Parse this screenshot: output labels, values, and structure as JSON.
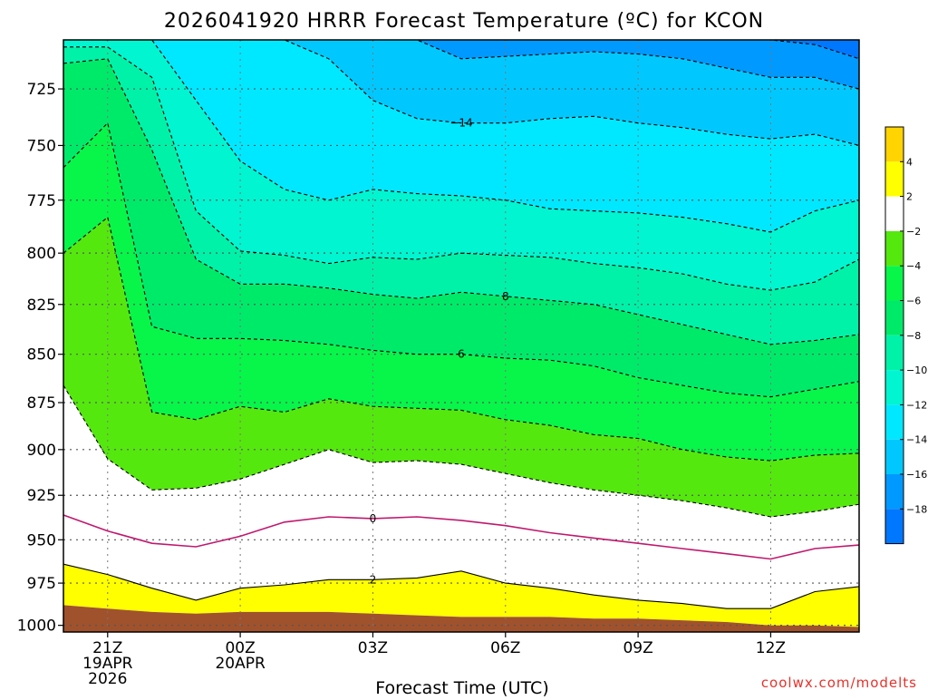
{
  "chart_data": {
    "type": "contour",
    "title": "2026041920 HRRR Forecast Temperature (ºC) for KCON",
    "xlabel": "Forecast Time (UTC)",
    "ylabel": "",
    "credit": "coolwx.com/modelts",
    "x_ticks": [
      {
        "hour": 1,
        "lines": [
          "21Z",
          "19APR",
          "2026"
        ]
      },
      {
        "hour": 4,
        "lines": [
          "00Z",
          "20APR"
        ]
      },
      {
        "hour": 7,
        "lines": [
          "03Z"
        ]
      },
      {
        "hour": 10,
        "lines": [
          "06Z"
        ]
      },
      {
        "hour": 13,
        "lines": [
          "09Z"
        ]
      },
      {
        "hour": 16,
        "lines": [
          "12Z"
        ]
      }
    ],
    "xlim": [
      0,
      18
    ],
    "y_ticks": [
      725,
      750,
      775,
      800,
      825,
      850,
      875,
      900,
      925,
      950,
      975,
      1000
    ],
    "ylim": [
      704,
      1004
    ],
    "y_scale": "log-pressure",
    "grid": true,
    "fill_colors": {
      "t_gt4": "#ffd400",
      "t_2_4": "#ffff00",
      "t_m2_2": "#ffffff",
      "t_m4_m2": "#55e80e",
      "t_m6_m4": "#08f54a",
      "t_m8_m6": "#00ea6a",
      "t_m10_m8": "#00f2a8",
      "t_m12_m10": "#00f5d0",
      "t_m14_m12": "#00e8ff",
      "t_m16_m14": "#00c8ff",
      "t_m18_m16": "#0099ff",
      "t_lt_m18": "#0077ff",
      "ground": "#a0522d"
    },
    "hours": [
      0,
      1,
      2,
      3,
      4,
      5,
      6,
      7,
      8,
      9,
      10,
      11,
      12,
      13,
      14,
      15,
      16,
      17,
      18
    ],
    "isotherms": [
      {
        "level": 2,
        "color": "#000000",
        "dashed": false,
        "label": "2",
        "label_hour": 7,
        "pressure": [
          964,
          970,
          978,
          985,
          978,
          976,
          973,
          973,
          972,
          968,
          975,
          978,
          982,
          985,
          987,
          990,
          990,
          980,
          977
        ]
      },
      {
        "level": 0,
        "color": "#c0186e",
        "dashed": false,
        "label": "0",
        "label_hour": 7,
        "pressure": [
          936,
          945,
          952,
          954,
          948,
          940,
          937,
          938,
          937,
          939,
          942,
          946,
          949,
          952,
          955,
          958,
          961,
          955,
          953
        ]
      },
      {
        "level": -2,
        "color": "#000000",
        "dashed": true,
        "label": "",
        "label_hour": 0,
        "pressure": [
          866,
          905,
          922,
          921,
          916,
          908,
          900,
          907,
          906,
          908,
          913,
          918,
          922,
          925,
          928,
          932,
          937,
          934,
          930
        ]
      },
      {
        "level": -4,
        "color": "#000000",
        "dashed": true,
        "label": "",
        "label_hour": 0,
        "pressure": [
          800,
          783,
          880,
          884,
          877,
          880,
          873,
          877,
          878,
          879,
          884,
          887,
          892,
          894,
          900,
          904,
          906,
          903,
          902
        ]
      },
      {
        "level": -6,
        "color": "#000000",
        "dashed": true,
        "label": "6",
        "label_hour": 9,
        "pressure": [
          760,
          740,
          836,
          842,
          842,
          843,
          845,
          848,
          850,
          850,
          852,
          853,
          856,
          862,
          866,
          870,
          872,
          868,
          864
        ]
      },
      {
        "level": -8,
        "color": "#000000",
        "dashed": true,
        "label": "8",
        "label_hour": 10,
        "pressure": [
          714,
          712,
          752,
          803,
          815,
          815,
          817,
          820,
          822,
          819,
          821,
          823,
          825,
          830,
          835,
          840,
          845,
          843,
          840
        ]
      },
      {
        "level": -10,
        "color": "#000000",
        "dashed": true,
        "label": "",
        "label_hour": 0,
        "pressure": [
          707,
          707,
          720,
          780,
          799,
          801,
          805,
          802,
          803,
          800,
          801,
          802,
          805,
          807,
          810,
          815,
          818,
          814,
          803
        ]
      },
      {
        "level": -12,
        "color": "#000000",
        "dashed": true,
        "label": "",
        "label_hour": 0,
        "pressure": [
          704,
          704,
          704,
          730,
          757,
          770,
          775,
          770,
          772,
          773,
          775,
          779,
          780,
          781,
          783,
          786,
          790,
          780,
          775
        ]
      },
      {
        "level": -14,
        "color": "#000000",
        "dashed": true,
        "label": "−14",
        "label_hour": 9,
        "pressure": [
          704,
          704,
          704,
          704,
          704,
          704,
          712,
          730,
          738,
          740,
          740,
          738,
          737,
          740,
          742,
          745,
          747,
          745,
          750
        ]
      },
      {
        "level": -16,
        "color": "#000000",
        "dashed": true,
        "label": "",
        "label_hour": 0,
        "pressure": [
          704,
          704,
          704,
          704,
          704,
          704,
          704,
          704,
          704,
          712,
          711,
          710,
          709,
          710,
          712,
          716,
          720,
          720,
          725
        ]
      },
      {
        "level": -18,
        "color": "#000000",
        "dashed": true,
        "label": "",
        "label_hour": 0,
        "pressure": [
          704,
          704,
          704,
          704,
          704,
          704,
          704,
          704,
          704,
          704,
          704,
          704,
          704,
          704,
          704,
          704,
          704,
          706,
          712
        ]
      }
    ],
    "surface_pressure": [
      988,
      990,
      992,
      993,
      992,
      992,
      992,
      993,
      994,
      995,
      995,
      995,
      996,
      996,
      997,
      998,
      1000,
      1000,
      1001
    ],
    "colorbar": {
      "labels": [
        "4",
        "2",
        "−2",
        "−4",
        "−6",
        "−8",
        "−10",
        "−12",
        "−14",
        "−16",
        "−18"
      ],
      "colors": [
        "#ffd400",
        "#ffff00",
        "#ffffff",
        "#55e80e",
        "#08f54a",
        "#00ea6a",
        "#00f2a8",
        "#00f5d0",
        "#00e8ff",
        "#00c8ff",
        "#0099ff",
        "#0077ff"
      ]
    }
  }
}
